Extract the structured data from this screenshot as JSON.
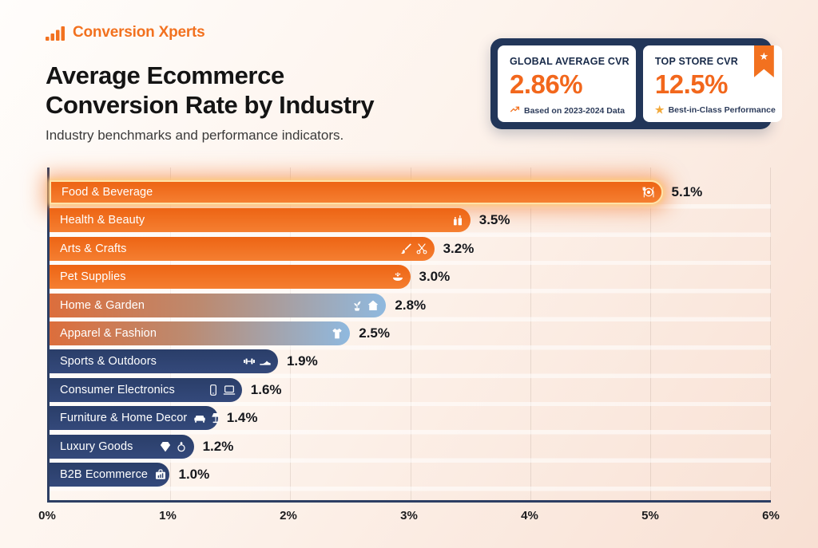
{
  "brand": {
    "name": "Conversion Xperts",
    "logo_icon": "bar-chart-logo-icon"
  },
  "header": {
    "title_line1": "Average Ecommerce",
    "title_line2": "Conversion Rate by Industry",
    "subtitle": "Industry benchmarks and performance indicators."
  },
  "stats": {
    "global": {
      "label": "GLOBAL AVERAGE CVR",
      "value": "2.86%",
      "note": "Based on 2023-2024 Data",
      "icon": "trend-up-icon"
    },
    "top": {
      "label": "TOP STORE CVR",
      "value": "12.5%",
      "note": "Best-in-Class Performance",
      "icon": "star-icon",
      "badge_icon": "ribbon-star-icon"
    }
  },
  "colors": {
    "accent_orange": "#F2711F",
    "navy_container": "#223659",
    "bar_navy": "#2E4370",
    "gradient_start": "#DC6E3C",
    "gradient_end": "#8FB9DF",
    "gold": "#F2A93B",
    "axis": "#2C3E63"
  },
  "chart_data": {
    "type": "bar",
    "orientation": "horizontal",
    "title": "Average Ecommerce Conversion Rate by Industry",
    "xlabel": "",
    "ylabel": "",
    "xlim": [
      0,
      6
    ],
    "x_ticks": [
      "0%",
      "1%",
      "2%",
      "3%",
      "4%",
      "5%",
      "6%"
    ],
    "grid": true,
    "categories": [
      "Food & Beverage",
      "Health & Beauty",
      "Arts & Crafts",
      "Pet Supplies",
      "Home & Garden",
      "Apparel & Fashion",
      "Sports & Outdoors",
      "Consumer Electronics",
      "Furniture & Home Decor",
      "Luxury Goods",
      "B2B Ecommerce"
    ],
    "values": [
      5.1,
      3.5,
      3.2,
      3.0,
      2.8,
      2.5,
      1.9,
      1.6,
      1.4,
      1.2,
      1.0
    ],
    "bars": [
      {
        "label": "Food & Beverage",
        "value": 5.1,
        "display": "5.1%",
        "style": "orange",
        "highlight": true,
        "icons": [
          "dining-icon"
        ]
      },
      {
        "label": "Health & Beauty",
        "value": 3.5,
        "display": "3.5%",
        "style": "orange",
        "highlight": false,
        "icons": [
          "cosmetics-icon"
        ]
      },
      {
        "label": "Arts & Crafts",
        "value": 3.2,
        "display": "3.2%",
        "style": "orange",
        "highlight": false,
        "icons": [
          "paintbrush-icon",
          "scissors-icon"
        ]
      },
      {
        "label": "Pet Supplies",
        "value": 3.0,
        "display": "3.0%",
        "style": "orange",
        "highlight": false,
        "icons": [
          "pet-bowl-icon"
        ]
      },
      {
        "label": "Home & Garden",
        "value": 2.8,
        "display": "2.8%",
        "style": "gradient",
        "highlight": false,
        "icons": [
          "plant-icon",
          "house-icon"
        ]
      },
      {
        "label": "Apparel & Fashion",
        "value": 2.5,
        "display": "2.5%",
        "style": "gradient",
        "highlight": false,
        "icons": [
          "tshirt-icon"
        ]
      },
      {
        "label": "Sports & Outdoors",
        "value": 1.9,
        "display": "1.9%",
        "style": "navy",
        "highlight": false,
        "icons": [
          "dumbbell-icon",
          "shoe-icon"
        ]
      },
      {
        "label": "Consumer Electronics",
        "value": 1.6,
        "display": "1.6%",
        "style": "navy",
        "highlight": false,
        "icons": [
          "phone-icon",
          "laptop-icon"
        ]
      },
      {
        "label": "Furniture & Home Decor",
        "value": 1.4,
        "display": "1.4%",
        "style": "navy",
        "highlight": false,
        "icons": [
          "sofa-icon",
          "lamp-icon"
        ]
      },
      {
        "label": "Luxury Goods",
        "value": 1.2,
        "display": "1.2%",
        "style": "navy",
        "highlight": false,
        "icons": [
          "diamond-icon",
          "ring-icon"
        ]
      },
      {
        "label": "B2B Ecommerce",
        "value": 1.0,
        "display": "1.0%",
        "style": "navy",
        "highlight": false,
        "icons": [
          "briefcase-chart-icon"
        ]
      }
    ]
  }
}
